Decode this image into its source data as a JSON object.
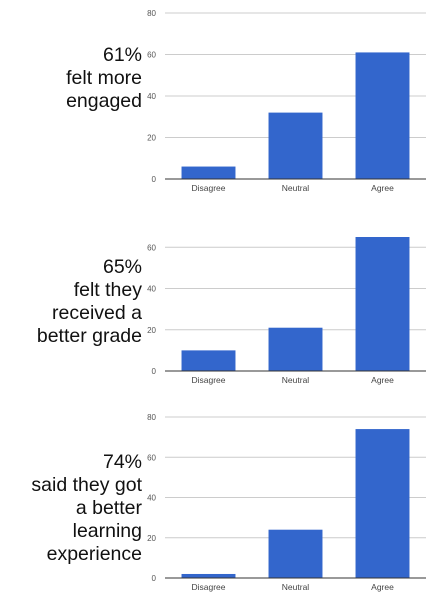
{
  "chart_data": [
    {
      "type": "bar",
      "headline": [
        "61%",
        "felt more",
        "engaged"
      ],
      "categories": [
        "Disagree",
        "Neutral",
        "Agree"
      ],
      "values": [
        6,
        32,
        61
      ],
      "yticks": [
        0,
        20,
        40,
        60,
        80
      ],
      "ylim": [
        0,
        80
      ],
      "grid": true,
      "color": "#3366cc"
    },
    {
      "type": "bar",
      "headline": [
        "65%",
        "felt they",
        "received a",
        "better grade"
      ],
      "categories": [
        "Disagree",
        "Neutral",
        "Agree"
      ],
      "values": [
        10,
        21,
        65
      ],
      "yticks": [
        0,
        20,
        40,
        60
      ],
      "ylim": [
        0,
        65
      ],
      "grid": true,
      "color": "#3366cc"
    },
    {
      "type": "bar",
      "headline": [
        "74%",
        "said they got",
        "a better",
        "learning",
        "experience"
      ],
      "categories": [
        "Disagree",
        "Neutral",
        "Agree"
      ],
      "values": [
        2,
        24,
        74
      ],
      "yticks": [
        0,
        20,
        40,
        60,
        80
      ],
      "ylim": [
        0,
        80
      ],
      "grid": true,
      "color": "#3366cc"
    }
  ]
}
